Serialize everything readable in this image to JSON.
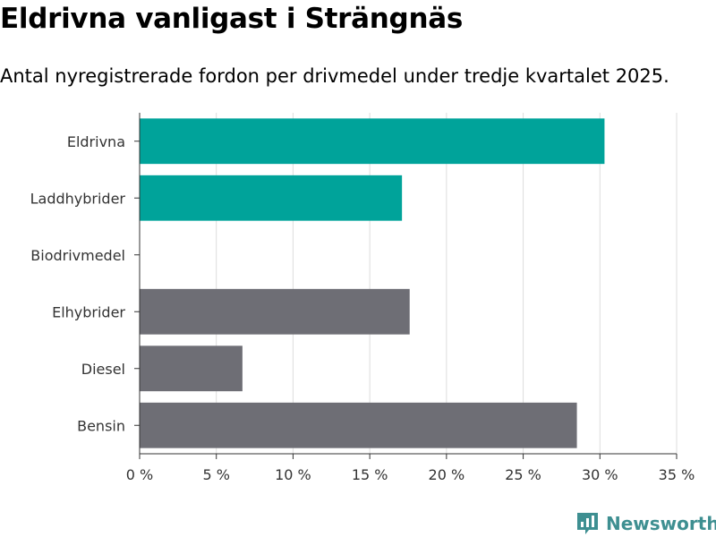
{
  "title": "Eldrivna vanligast i Strängnäs",
  "subtitle": "Antal nyregistrerade fordon per drivmedel under tredje kvartalet 2025.",
  "brand": {
    "name": "Newsworthy",
    "icon": "newsworthy-logo-icon"
  },
  "colors": {
    "highlight": "#00a39a",
    "neutral": "#6e6e75",
    "grid": "#dddddd",
    "axis": "#333333"
  },
  "chart_data": {
    "type": "bar",
    "orientation": "horizontal",
    "title": "Eldrivna vanligast i Strängnäs",
    "subtitle": "Antal nyregistrerade fordon per drivmedel under tredje kvartalet 2025.",
    "xlabel": "",
    "ylabel": "",
    "unit": "%",
    "xlim": [
      0,
      35
    ],
    "ticks": [
      0,
      5,
      10,
      15,
      20,
      25,
      30,
      35
    ],
    "tick_labels": [
      "0 %",
      "5 %",
      "10 %",
      "15 %",
      "20 %",
      "25 %",
      "30 %",
      "35 %"
    ],
    "grid": true,
    "legend": "none",
    "categories": [
      "Eldrivna",
      "Laddhybrider",
      "Biodrivmedel",
      "Elhybrider",
      "Diesel",
      "Bensin"
    ],
    "values": [
      30.3,
      17.1,
      0,
      17.6,
      6.7,
      28.5
    ],
    "highlight": [
      true,
      true,
      true,
      false,
      false,
      false
    ]
  }
}
